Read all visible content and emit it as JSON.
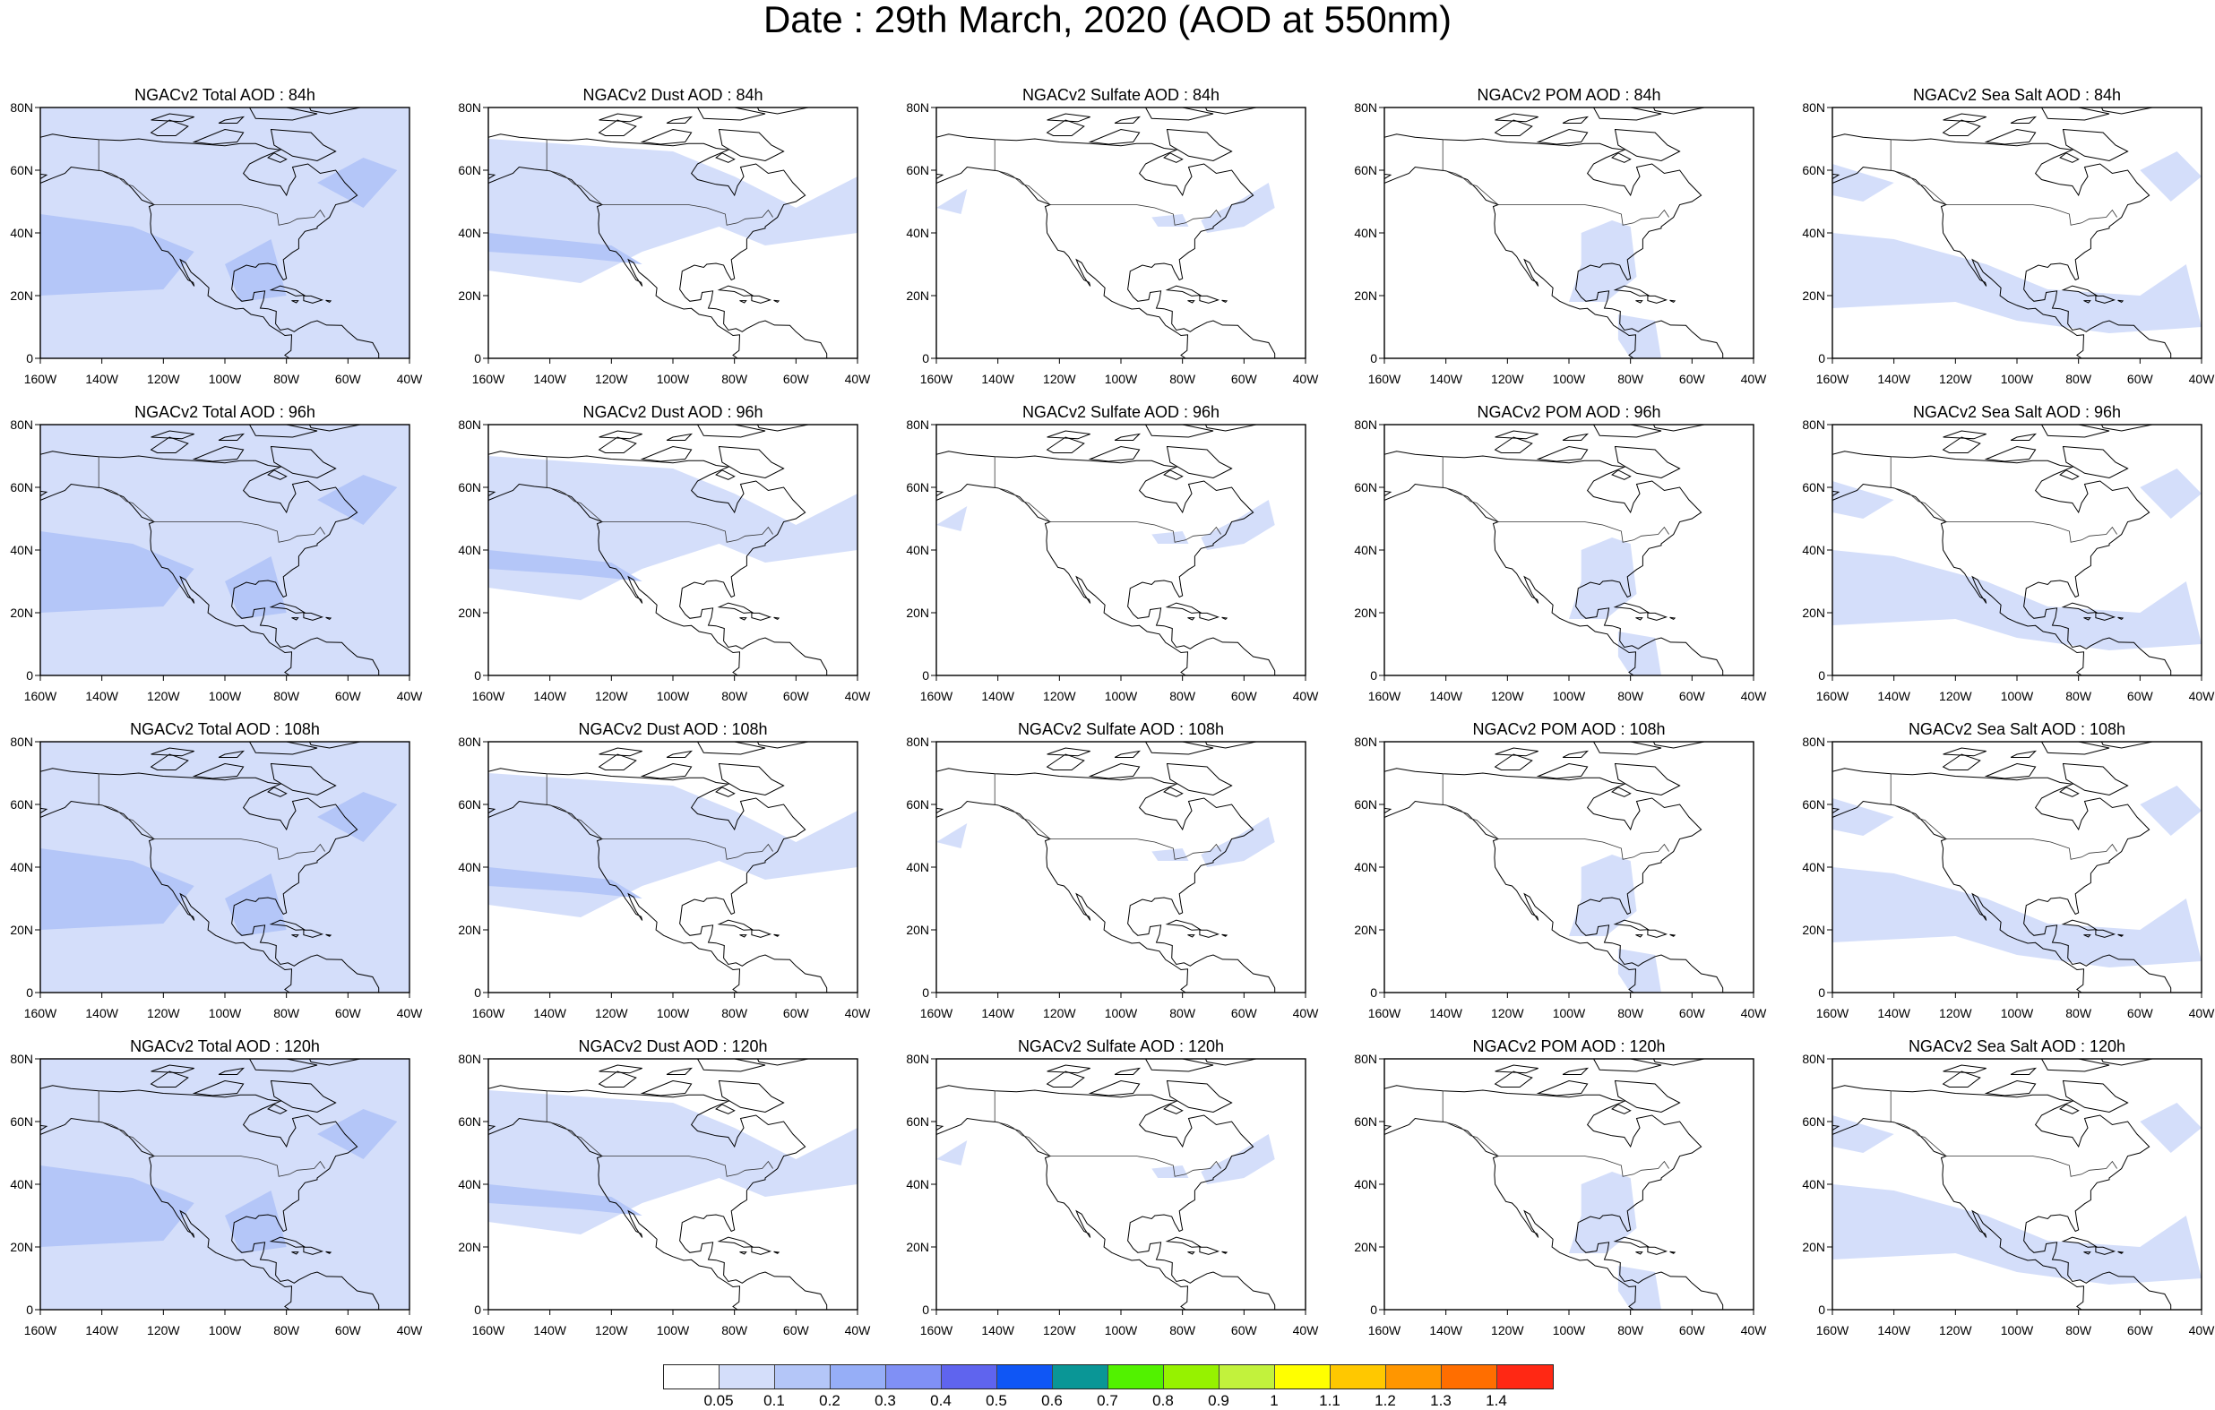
{
  "title": "Date : 29th March, 2020 (AOD at 550nm)",
  "map": {
    "lat_labels": [
      "80N",
      "60N",
      "40N",
      "20N",
      "0"
    ],
    "lon_labels": [
      "160W",
      "140W",
      "120W",
      "100W",
      "80W",
      "60W",
      "40W"
    ],
    "lat_range": [
      0,
      80
    ],
    "lon_range": [
      -160,
      -40
    ],
    "columns": [
      "Total",
      "Dust",
      "Sulfate",
      "POM",
      "Sea Salt"
    ],
    "rows": [
      "84h",
      "96h",
      "108h",
      "120h"
    ]
  },
  "panels": [
    {
      "title": "NGACv2 Total AOD : 84h",
      "variable": "Total",
      "lead": "84h"
    },
    {
      "title": "NGACv2 Dust AOD : 84h",
      "variable": "Dust",
      "lead": "84h"
    },
    {
      "title": "NGACv2 Sulfate AOD : 84h",
      "variable": "Sulfate",
      "lead": "84h"
    },
    {
      "title": "NGACv2 POM AOD : 84h",
      "variable": "POM",
      "lead": "84h"
    },
    {
      "title": "NGACv2 Sea Salt AOD : 84h",
      "variable": "Sea Salt",
      "lead": "84h"
    },
    {
      "title": "NGACv2 Total AOD : 96h",
      "variable": "Total",
      "lead": "96h"
    },
    {
      "title": "NGACv2 Dust AOD : 96h",
      "variable": "Dust",
      "lead": "96h"
    },
    {
      "title": "NGACv2 Sulfate AOD : 96h",
      "variable": "Sulfate",
      "lead": "96h"
    },
    {
      "title": "NGACv2 POM AOD : 96h",
      "variable": "POM",
      "lead": "96h"
    },
    {
      "title": "NGACv2 Sea Salt AOD : 96h",
      "variable": "Sea Salt",
      "lead": "96h"
    },
    {
      "title": "NGACv2 Total AOD : 108h",
      "variable": "Total",
      "lead": "108h"
    },
    {
      "title": "NGACv2 Dust AOD : 108h",
      "variable": "Dust",
      "lead": "108h"
    },
    {
      "title": "NGACv2 Sulfate AOD : 108h",
      "variable": "Sulfate",
      "lead": "108h"
    },
    {
      "title": "NGACv2 POM AOD : 108h",
      "variable": "POM",
      "lead": "108h"
    },
    {
      "title": "NGACv2 Sea Salt AOD : 108h",
      "variable": "Sea Salt",
      "lead": "108h"
    },
    {
      "title": "NGACv2 Total AOD : 120h",
      "variable": "Total",
      "lead": "120h"
    },
    {
      "title": "NGACv2 Dust AOD : 120h",
      "variable": "Dust",
      "lead": "120h"
    },
    {
      "title": "NGACv2 Sulfate AOD : 120h",
      "variable": "Sulfate",
      "lead": "120h"
    },
    {
      "title": "NGACv2 POM AOD : 120h",
      "variable": "POM",
      "lead": "120h"
    },
    {
      "title": "NGACv2 Sea Salt  AOD : 120h",
      "variable": "Sea Salt",
      "lead": "120h"
    }
  ],
  "colorbar": {
    "labels": [
      "0.05",
      "0.1",
      "0.2",
      "0.3",
      "0.4",
      "0.5",
      "0.6",
      "0.7",
      "0.8",
      "0.9",
      "1",
      "1.1",
      "1.2",
      "1.3",
      "1.4"
    ],
    "colors": [
      "#ffffff",
      "#d4defa",
      "#b4c6f8",
      "#96aef7",
      "#8090f5",
      "#5f64ee",
      "#0f56f5",
      "#0a9696",
      "#52f200",
      "#96f200",
      "#c2f23c",
      "#ffff00",
      "#ffc800",
      "#ff9600",
      "#ff6e00",
      "#ff2814"
    ]
  },
  "shading_colors": {
    "level1": "#d4defa",
    "level2": "#b4c6f8"
  }
}
